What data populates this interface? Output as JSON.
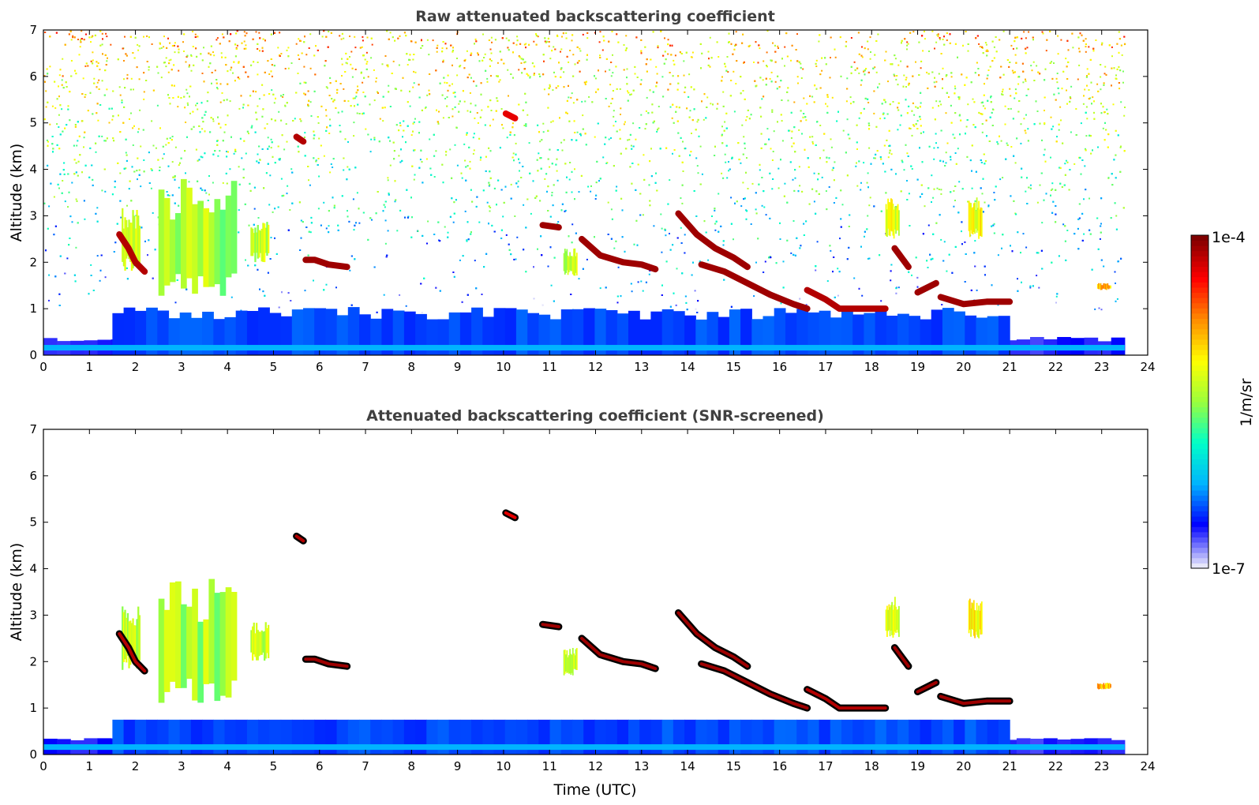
{
  "chart_data": [
    {
      "type": "heatmap",
      "title": "Raw attenuated backscattering coefficient",
      "xlabel": "",
      "ylabel": "Altitude (km)",
      "xlim": [
        0,
        24
      ],
      "ylim": [
        0,
        7
      ],
      "xticks": [
        "0",
        "1",
        "2",
        "3",
        "4",
        "5",
        "6",
        "7",
        "8",
        "9",
        "10",
        "11",
        "12",
        "13",
        "14",
        "15",
        "16",
        "17",
        "18",
        "19",
        "20",
        "21",
        "22",
        "23",
        "24"
      ],
      "yticks": [
        "0",
        "1",
        "2",
        "3",
        "4",
        "5",
        "6",
        "7"
      ],
      "data_end_hour": 23.5,
      "features": [
        {
          "kind": "surface_layer",
          "start": 0,
          "end": 23.5,
          "alt_low": 0.0,
          "alt_high": 0.35,
          "level": 0.08
        },
        {
          "kind": "boundary_layer",
          "start": 1.5,
          "end": 21.0,
          "alt_low": 0.0,
          "alt_high": 0.9,
          "level": 0.15
        },
        {
          "kind": "cloud",
          "points": [
            [
              1.65,
              2.6
            ],
            [
              1.85,
              2.3
            ],
            [
              2.0,
              2.0
            ],
            [
              2.2,
              1.8
            ]
          ],
          "level": 0.95
        },
        {
          "kind": "cloud",
          "points": [
            [
              5.5,
              4.7
            ],
            [
              5.65,
              4.6
            ]
          ],
          "level": 0.95
        },
        {
          "kind": "cloud",
          "points": [
            [
              5.7,
              2.05
            ],
            [
              5.9,
              2.05
            ],
            [
              6.2,
              1.95
            ],
            [
              6.6,
              1.9
            ]
          ],
          "level": 0.97
        },
        {
          "kind": "cloud",
          "points": [
            [
              10.05,
              5.2
            ],
            [
              10.25,
              5.1
            ]
          ],
          "level": 0.9
        },
        {
          "kind": "cloud",
          "points": [
            [
              10.85,
              2.8
            ],
            [
              11.2,
              2.75
            ]
          ],
          "level": 0.97
        },
        {
          "kind": "cloud",
          "points": [
            [
              11.7,
              2.5
            ],
            [
              12.1,
              2.15
            ],
            [
              12.6,
              2.0
            ],
            [
              13.0,
              1.95
            ],
            [
              13.3,
              1.85
            ]
          ],
          "level": 0.97
        },
        {
          "kind": "cloud",
          "points": [
            [
              13.8,
              3.05
            ],
            [
              14.2,
              2.6
            ],
            [
              14.6,
              2.3
            ],
            [
              15.0,
              2.1
            ],
            [
              15.3,
              1.9
            ]
          ],
          "level": 0.97
        },
        {
          "kind": "cloud",
          "points": [
            [
              14.3,
              1.95
            ],
            [
              14.8,
              1.8
            ],
            [
              15.3,
              1.55
            ],
            [
              15.8,
              1.3
            ],
            [
              16.3,
              1.1
            ],
            [
              16.6,
              1.0
            ]
          ],
          "level": 0.97
        },
        {
          "kind": "cloud",
          "points": [
            [
              16.6,
              1.4
            ],
            [
              17.0,
              1.2
            ],
            [
              17.3,
              1.0
            ],
            [
              17.8,
              1.0
            ],
            [
              18.3,
              1.0
            ]
          ],
          "level": 0.95
        },
        {
          "kind": "cloud",
          "points": [
            [
              18.5,
              2.3
            ],
            [
              18.8,
              1.9
            ]
          ],
          "level": 0.97
        },
        {
          "kind": "cloud",
          "points": [
            [
              19.0,
              1.35
            ],
            [
              19.4,
              1.55
            ]
          ],
          "level": 0.97
        },
        {
          "kind": "cloud",
          "points": [
            [
              19.5,
              1.25
            ],
            [
              20.0,
              1.1
            ],
            [
              20.5,
              1.15
            ],
            [
              21.0,
              1.15
            ]
          ],
          "level": 0.97
        },
        {
          "kind": "aerosol",
          "start": 1.7,
          "end": 2.1,
          "alt_low": 1.8,
          "alt_high": 3.2,
          "level": 0.55
        },
        {
          "kind": "aerosol",
          "start": 2.5,
          "end": 4.2,
          "alt_low": 1.1,
          "alt_high": 3.8,
          "level": 0.52
        },
        {
          "kind": "aerosol",
          "start": 4.5,
          "end": 4.9,
          "alt_low": 2.0,
          "alt_high": 2.9,
          "level": 0.55
        },
        {
          "kind": "aerosol",
          "start": 11.3,
          "end": 11.6,
          "alt_low": 1.7,
          "alt_high": 2.3,
          "level": 0.55
        },
        {
          "kind": "aerosol",
          "start": 18.3,
          "end": 18.6,
          "alt_low": 2.5,
          "alt_high": 3.4,
          "level": 0.58
        },
        {
          "kind": "aerosol",
          "start": 20.1,
          "end": 20.4,
          "alt_low": 2.5,
          "alt_high": 3.4,
          "level": 0.62
        },
        {
          "kind": "aerosol",
          "start": 22.9,
          "end": 23.2,
          "alt_low": 1.4,
          "alt_high": 1.55,
          "level": 0.7
        },
        {
          "kind": "noise",
          "alt_start": 0.9,
          "alt_end": 7.0,
          "description": "signal noise increasing with altitude"
        }
      ]
    },
    {
      "type": "heatmap",
      "title": "Attenuated backscattering coefficient (SNR-screened)",
      "xlabel": "Time (UTC)",
      "ylabel": "Altitude (km)",
      "xlim": [
        0,
        24
      ],
      "ylim": [
        0,
        7
      ],
      "xticks": [
        "0",
        "1",
        "2",
        "3",
        "4",
        "5",
        "6",
        "7",
        "8",
        "9",
        "10",
        "11",
        "12",
        "13",
        "14",
        "15",
        "16",
        "17",
        "18",
        "19",
        "20",
        "21",
        "22",
        "23",
        "24"
      ],
      "yticks": [
        "0",
        "1",
        "2",
        "3",
        "4",
        "5",
        "6",
        "7"
      ],
      "data_end_hour": 23.5,
      "screened": true
    }
  ],
  "colorbar": {
    "label": "1/m/sr",
    "max_label": "1e-4",
    "min_label": "1e-7",
    "colormap": [
      "#e6e6fa",
      "#0000ff",
      "#00b4ff",
      "#00ffc8",
      "#9bff3c",
      "#ffff00",
      "#ff8c00",
      "#ff0000",
      "#800000"
    ]
  }
}
